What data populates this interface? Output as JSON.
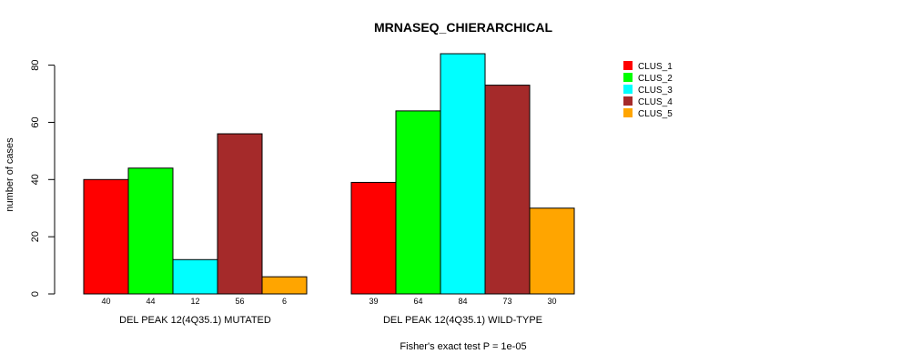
{
  "chart_data": {
    "type": "bar",
    "title": "MRNASEQ_CHIERARCHICAL",
    "ylabel": "number of cases",
    "ylim": [
      0,
      88
    ],
    "yticks": [
      0,
      20,
      40,
      60,
      80
    ],
    "footnote": "Fisher's exact test P = 1e-05",
    "groups": [
      {
        "label": "DEL PEAK 12(4Q35.1) MUTATED",
        "values": [
          40,
          44,
          12,
          56,
          6
        ]
      },
      {
        "label": "DEL PEAK 12(4Q35.1) WILD-TYPE",
        "values": [
          39,
          64,
          84,
          73,
          30
        ]
      }
    ],
    "series": [
      {
        "name": "CLUS_1",
        "color": "#ff0000"
      },
      {
        "name": "CLUS_2",
        "color": "#00ff00"
      },
      {
        "name": "CLUS_3",
        "color": "#00ffff"
      },
      {
        "name": "CLUS_4",
        "color": "#a52a2a"
      },
      {
        "name": "CLUS_5",
        "color": "#ffa500"
      }
    ]
  }
}
